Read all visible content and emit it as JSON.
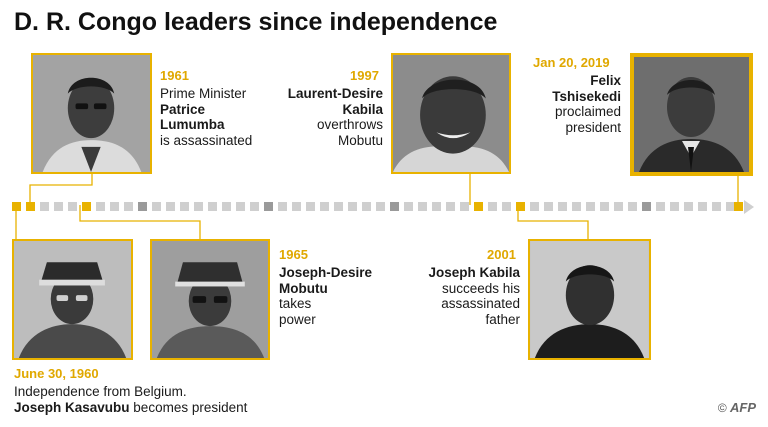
{
  "title": "D. R. Congo leaders since independence",
  "events": [
    {
      "id": "1961",
      "date": "1961",
      "lines": [
        "Prime Minister",
        "Patrice",
        "Lumumba",
        "is assassinated"
      ],
      "bold_lines": [
        1,
        2
      ]
    },
    {
      "id": "1997",
      "date": "1997",
      "lines": [
        "Laurent-Desire",
        "Kabila",
        "overthrows",
        "Mobutu"
      ],
      "bold_lines": [
        0,
        1
      ]
    },
    {
      "id": "2019",
      "date": "Jan 20, 2019",
      "lines": [
        "Felix",
        "Tshisekedi",
        "proclaimed",
        "president"
      ],
      "bold_lines": [
        0,
        1
      ]
    },
    {
      "id": "1960",
      "date": "June 30, 1960",
      "lines": [
        "Independence from Belgium.",
        "Joseph Kasavubu becomes president"
      ],
      "bold_prefix": "Joseph Kasavubu",
      "plain_suffix": " becomes president"
    },
    {
      "id": "1965",
      "date": "1965",
      "lines": [
        "Joseph-Desire",
        "Mobutu",
        "takes",
        "power"
      ],
      "bold_lines": [
        0,
        1
      ]
    },
    {
      "id": "2001",
      "date": "2001",
      "lines": [
        "Joseph Kabila",
        "succeeds his",
        "assassinated",
        "father"
      ],
      "bold_lines": [
        0
      ]
    }
  ],
  "timeline": {
    "colors": {
      "highlight": "#e8b200",
      "light": "#cfcfcf",
      "dark": "#9a9a9a",
      "accent": "#e0a800"
    }
  },
  "credit": {
    "symbol": "©",
    "logo": "AFP"
  }
}
